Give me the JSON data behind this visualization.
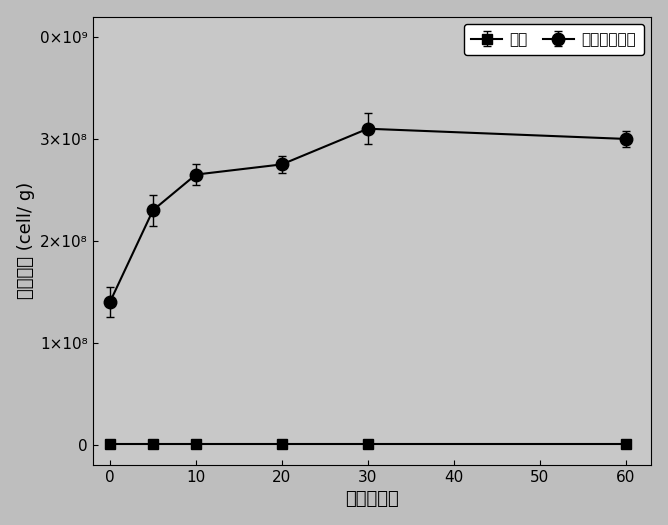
{
  "title": "",
  "xlabel": "时间（天）",
  "ylabel": "菌体浓度 (cell/ g)",
  "x_ticks": [
    0,
    10,
    20,
    30,
    40,
    50,
    60
  ],
  "xlim": [
    -2,
    63
  ],
  "ylim": [
    -20000000.0,
    420000000.0
  ],
  "y_ticks": [
    0,
    100000000.0,
    200000000.0,
    300000000.0,
    400000000.0
  ],
  "background_color": "#bebebe",
  "plot_bg_color": "#c8c8c8",
  "series_control": {
    "label": "对照",
    "x": [
      0,
      5,
      10,
      20,
      30,
      60
    ],
    "y": [
      500000.0,
      500000.0,
      500000.0,
      500000.0,
      500000.0,
      500000.0
    ],
    "yerr": [
      200000.0,
      200000.0,
      200000.0,
      200000.0,
      200000.0,
      200000.0
    ],
    "color": "black",
    "marker": "s",
    "markersize": 7,
    "linewidth": 1.5
  },
  "series_exo": {
    "label": "添加外源细菌",
    "x": [
      0,
      5,
      10,
      20,
      30,
      60
    ],
    "y": [
      140000000.0,
      230000000.0,
      265000000.0,
      275000000.0,
      310000000.0,
      300000000.0
    ],
    "yerr": [
      15000000.0,
      15000000.0,
      10000000.0,
      8000000.0,
      15000000.0,
      8000000.0
    ],
    "color": "black",
    "marker": "o",
    "markersize": 9,
    "linewidth": 1.5
  },
  "legend_loc": "upper right",
  "font_size_axis_label": 13,
  "font_size_tick": 11,
  "font_size_legend": 11
}
